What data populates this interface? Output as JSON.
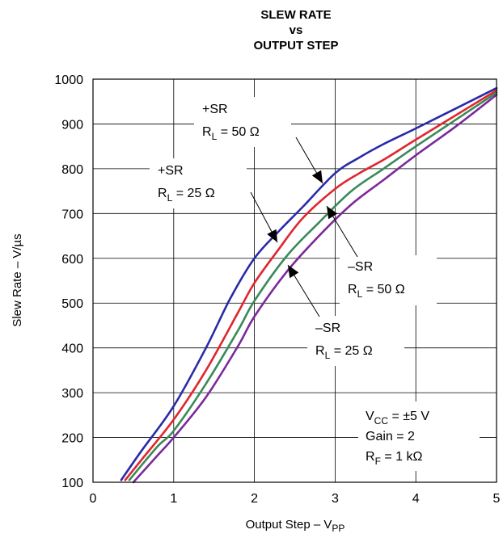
{
  "chart_data": {
    "type": "line",
    "title": [
      "SLEW RATE",
      "vs",
      "OUTPUT STEP"
    ],
    "xlabel": "Output Step – V",
    "xlabel_sub": "PP",
    "ylabel": "Slew Rate – V/µs",
    "xlim": [
      0,
      5
    ],
    "ylim": [
      100,
      1000
    ],
    "xticks": [
      "0",
      "1",
      "2",
      "3",
      "4",
      "5"
    ],
    "yticks": [
      "100",
      "200",
      "300",
      "400",
      "500",
      "600",
      "700",
      "800",
      "900",
      "1000"
    ],
    "grid": true,
    "series": [
      {
        "color": "#2a2aa8",
        "x": [
          0.35,
          0.6,
          1.0,
          1.4,
          1.7,
          2.0,
          2.3,
          2.6,
          3.0,
          3.3,
          3.6,
          4.0,
          4.5,
          5.0
        ],
        "y": [
          105,
          170,
          270,
          400,
          510,
          600,
          660,
          715,
          790,
          825,
          855,
          890,
          935,
          980
        ]
      },
      {
        "color": "#e0262e",
        "x": [
          0.4,
          0.6,
          1.0,
          1.4,
          1.8,
          2.0,
          2.3,
          2.6,
          3.0,
          3.3,
          3.6,
          4.0,
          4.5,
          5.0
        ],
        "y": [
          105,
          150,
          240,
          350,
          480,
          545,
          620,
          690,
          755,
          790,
          820,
          865,
          920,
          975
        ]
      },
      {
        "color": "#3a8a5a",
        "x": [
          0.45,
          0.8,
          1.0,
          1.4,
          1.8,
          2.0,
          2.4,
          2.8,
          3.2,
          3.6,
          4.0,
          4.5,
          5.0
        ],
        "y": [
          105,
          180,
          215,
          320,
          440,
          505,
          605,
          680,
          750,
          800,
          850,
          910,
          970
        ]
      },
      {
        "color": "#7a2a9a",
        "x": [
          0.5,
          0.8,
          1.0,
          1.4,
          1.8,
          2.0,
          2.4,
          2.8,
          3.2,
          3.6,
          4.0,
          4.5,
          5.0
        ],
        "y": [
          100,
          160,
          200,
          290,
          405,
          470,
          570,
          650,
          720,
          775,
          830,
          895,
          965
        ]
      }
    ],
    "annotations": [
      {
        "line1": "+SR",
        "r_main": "R",
        "r_sub": "L",
        "r_rest": " = 50 Ω"
      },
      {
        "line1": "+SR",
        "r_main": "R",
        "r_sub": "L",
        "r_rest": " = 25 Ω"
      },
      {
        "line1": "–SR",
        "r_main": "R",
        "r_sub": "L",
        "r_rest": " = 50 Ω"
      },
      {
        "line1": "–SR",
        "r_main": "R",
        "r_sub": "L",
        "r_rest": " = 25 Ω"
      }
    ],
    "conditions": [
      {
        "main": "V",
        "sub": "CC",
        "rest": " = ±5 V"
      },
      {
        "main": "Gain = 2",
        "sub": "",
        "rest": ""
      },
      {
        "main": "R",
        "sub": "F",
        "rest": " = 1 kΩ"
      }
    ]
  }
}
